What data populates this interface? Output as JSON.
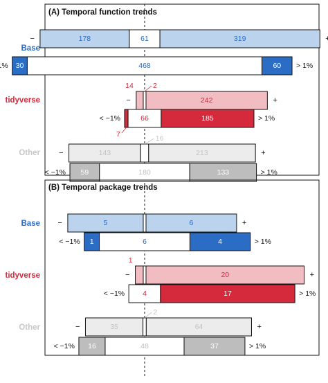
{
  "chart_data": [
    {
      "type": "bar",
      "panel": "A",
      "title": "(A) Temporal function trends",
      "sign_labels": {
        "minus": "−",
        "plus": "+",
        "low": "< −1%",
        "high": "> 1%"
      },
      "groups": [
        {
          "name": "Base",
          "color": "#2b6cc4",
          "top_row": {
            "minus": 178,
            "neutral": 61,
            "plus": 319
          },
          "bottom_row": {
            "low": 30,
            "middle": 468,
            "high": 60
          }
        },
        {
          "name": "tidyverse",
          "color": "#d42a3c",
          "top_row": {
            "minus": 14,
            "neutral": 2,
            "plus": 242
          },
          "bottom_row": {
            "low": 7,
            "middle": 66,
            "high": 185
          }
        },
        {
          "name": "Other",
          "color": "#c7c7c7",
          "top_row": {
            "minus": 143,
            "neutral": 16,
            "plus": 213
          },
          "bottom_row": {
            "low": 59,
            "middle": 180,
            "high": 133
          }
        }
      ]
    },
    {
      "type": "bar",
      "panel": "B",
      "title": "(B) Temporal package trends",
      "sign_labels": {
        "minus": "−",
        "plus": "+",
        "low": "< −1%",
        "high": "> 1%"
      },
      "groups": [
        {
          "name": "Base",
          "color": "#2b6cc4",
          "top_row": {
            "minus": 5,
            "neutral": 0,
            "plus": 6
          },
          "bottom_row": {
            "low": 1,
            "middle": 6,
            "high": 4
          }
        },
        {
          "name": "tidyverse",
          "color": "#d42a3c",
          "top_row": {
            "minus": 1,
            "neutral": 0,
            "plus": 20
          },
          "bottom_row": {
            "low": 0,
            "middle": 4,
            "high": 17
          }
        },
        {
          "name": "Other",
          "color": "#c7c7c7",
          "top_row": {
            "minus": 35,
            "neutral": 2,
            "plus": 64
          },
          "bottom_row": {
            "low": 16,
            "middle": 48,
            "high": 37
          }
        }
      ]
    }
  ],
  "colors": {
    "base_light": "#bcd3ee",
    "base_dark": "#2b6cc4",
    "base_text": "#2b6cc4",
    "tidy_light": "#f2bcc3",
    "tidy_dark": "#d42a3c",
    "tidy_text": "#d42a3c",
    "other_light": "#ececec",
    "other_dark": "#bdbdbd",
    "other_text": "#c7c7c7",
    "white": "#ffffff",
    "stroke": "#111111"
  }
}
